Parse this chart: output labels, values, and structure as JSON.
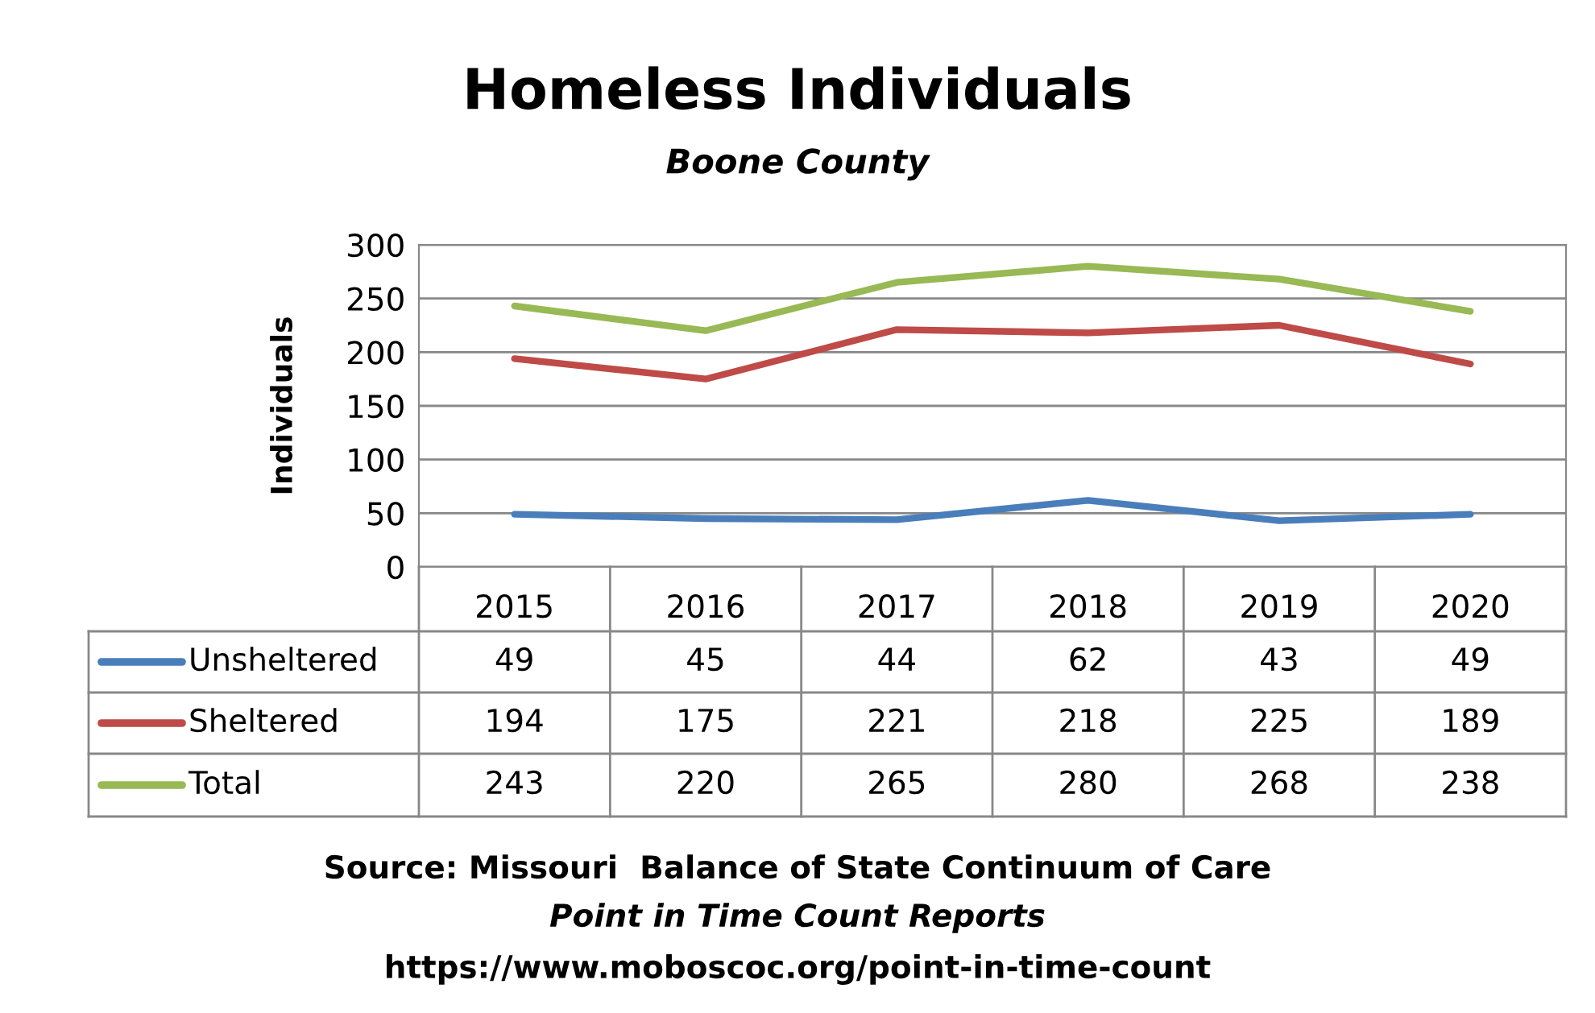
{
  "chart_data": {
    "type": "line",
    "title": "Homeless Individuals",
    "subtitle": "Boone County",
    "ylabel": "Individuals",
    "categories": [
      "2015",
      "2016",
      "2017",
      "2018",
      "2019",
      "2020"
    ],
    "series": [
      {
        "name": "Unsheltered",
        "color": "#4a7ebb",
        "values": [
          49,
          45,
          44,
          62,
          43,
          49
        ]
      },
      {
        "name": "Sheltered",
        "color": "#be4b48",
        "values": [
          194,
          175,
          221,
          218,
          225,
          189
        ]
      },
      {
        "name": "Total",
        "color": "#98b954",
        "values": [
          243,
          220,
          265,
          280,
          268,
          238
        ]
      }
    ],
    "ylim": [
      0,
      300
    ],
    "yticks": [
      0,
      50,
      100,
      150,
      200,
      250,
      300
    ],
    "grid": "y",
    "legend": "bottom",
    "marker": "none",
    "line_style": "solid",
    "data_labels": true,
    "annotations": [
      "Source: Missouri  Balance of State Continuum of Care",
      "Point in Time Count Reports",
      "https://www.moboscoc.org/point-in-time-count"
    ]
  }
}
